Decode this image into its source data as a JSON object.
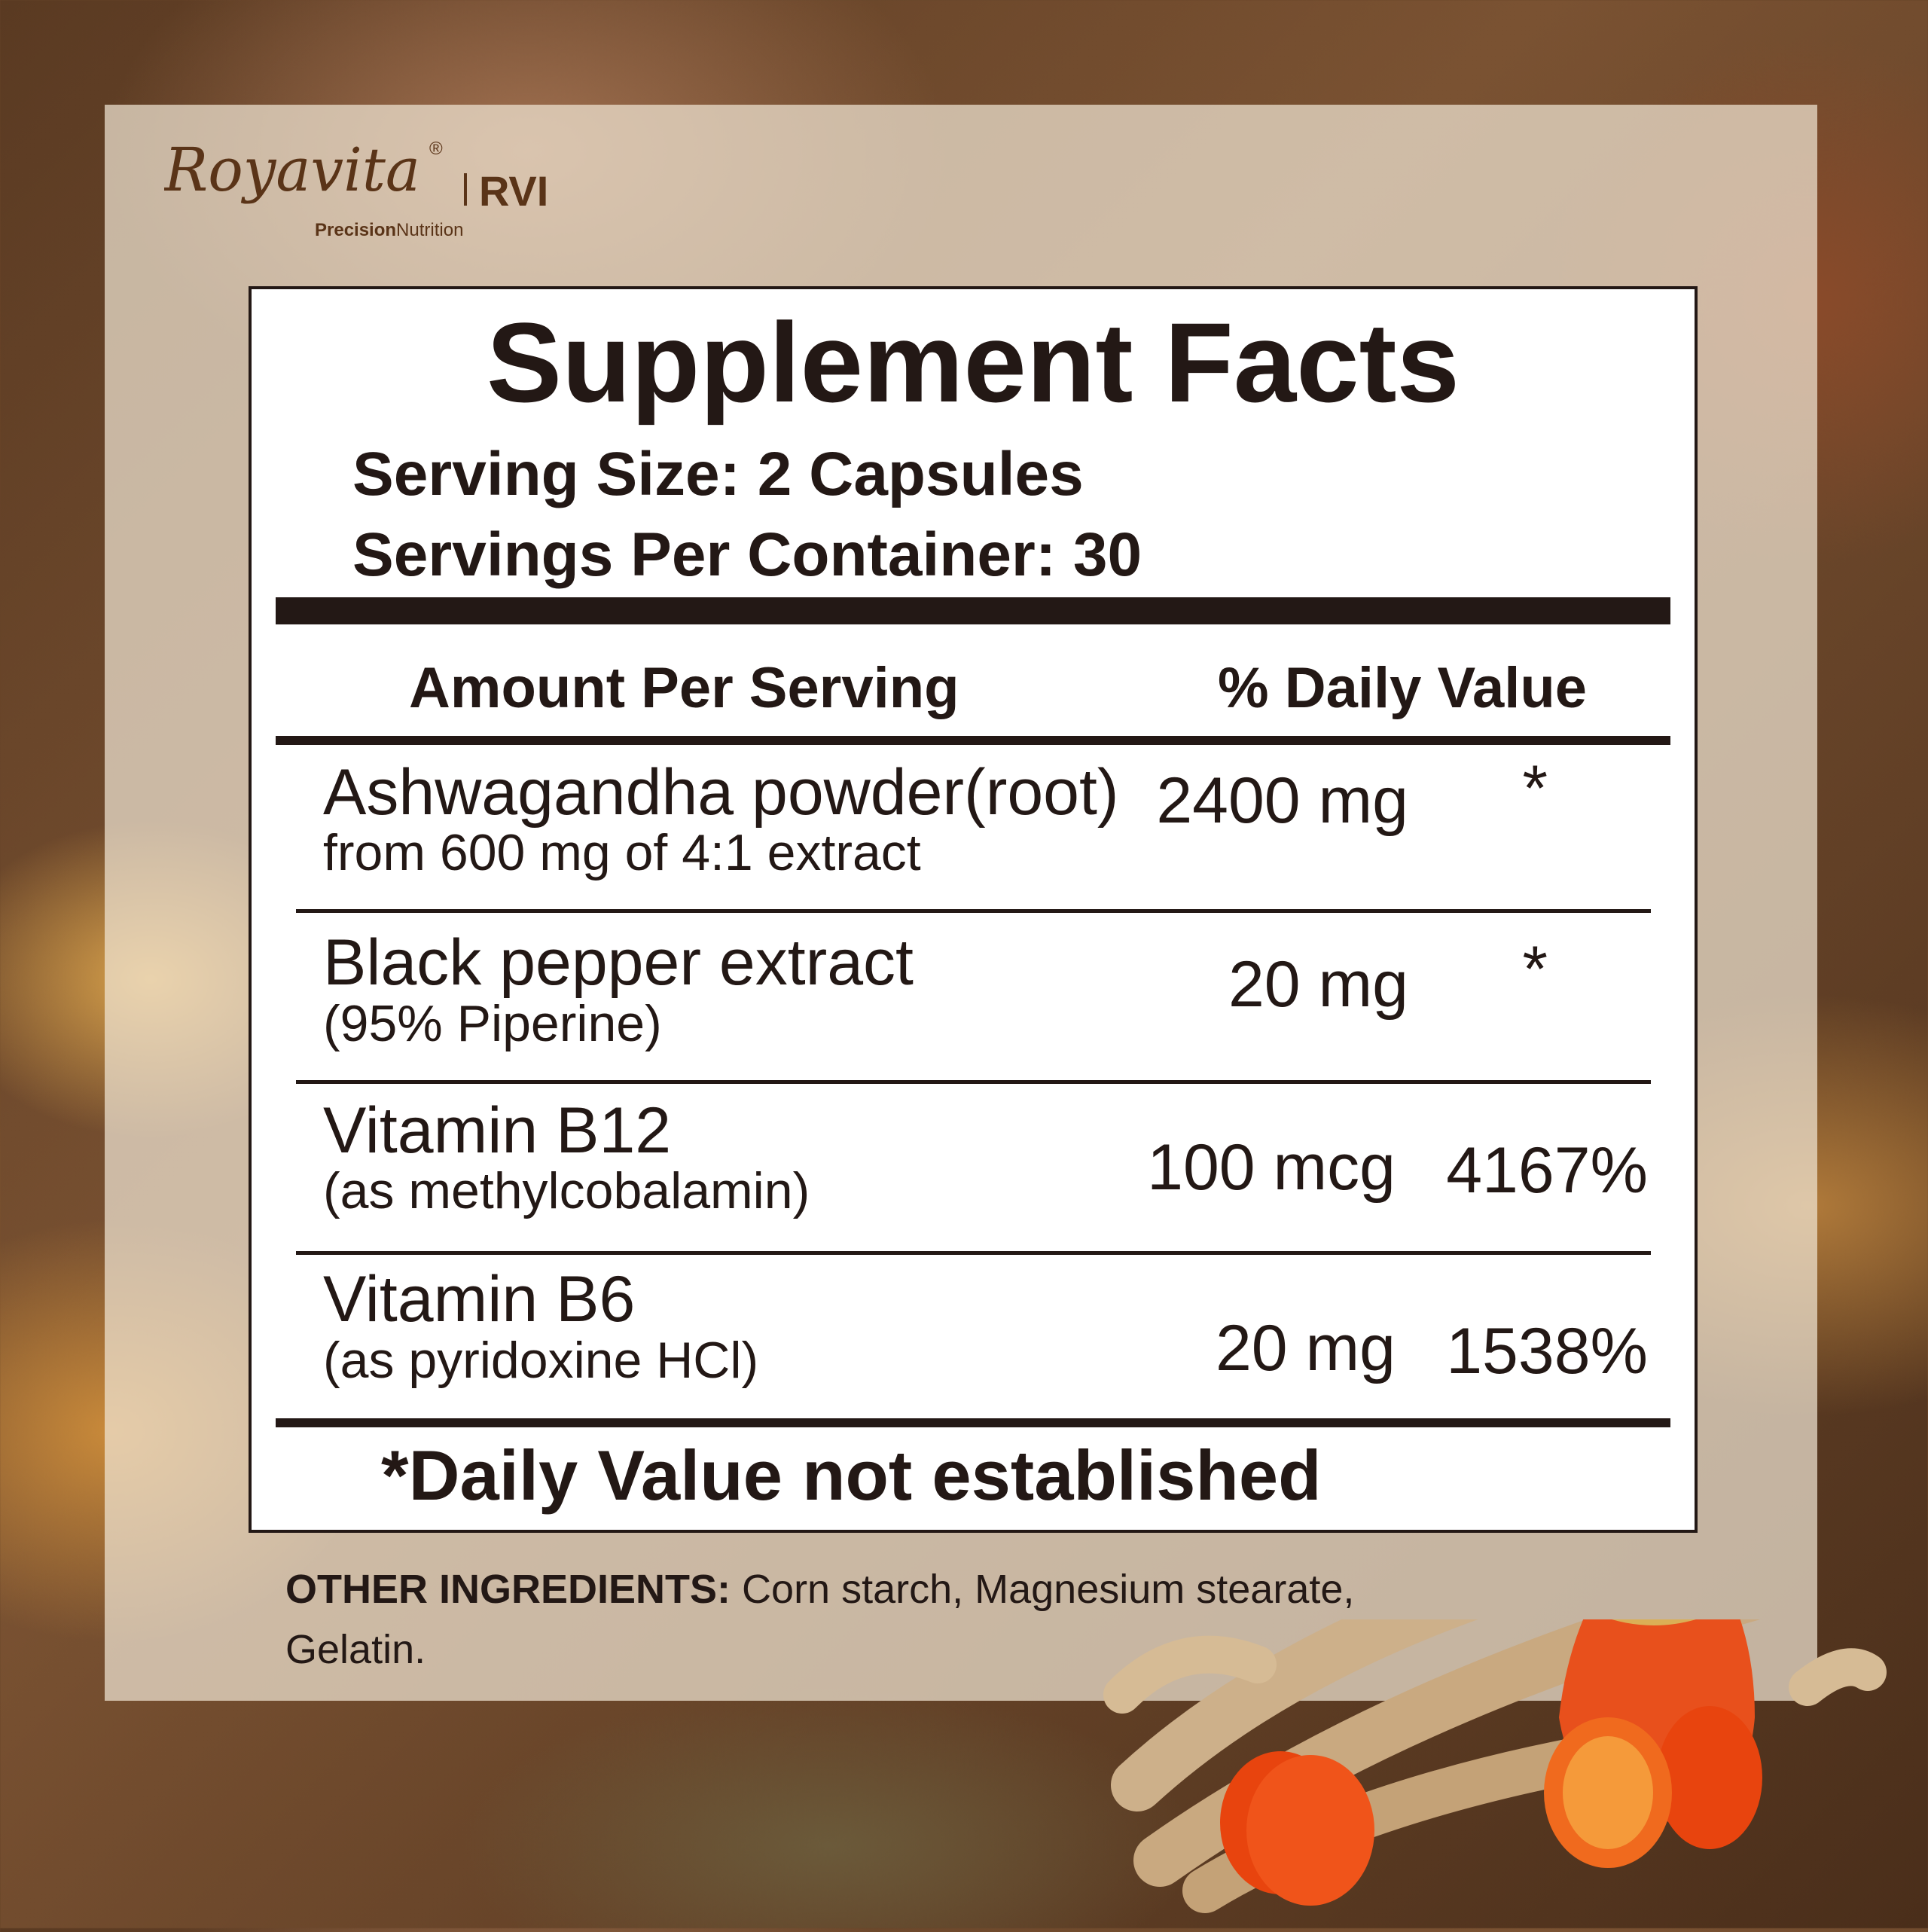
{
  "brand": {
    "logo_text": "Royavita",
    "registered": "®",
    "tagline_bold": "Precision",
    "tagline": "Nutrition",
    "partner": "RVI"
  },
  "label": {
    "title": "Supplement Facts",
    "serving_size": "Serving Size: 2 Capsules",
    "servings_per_container": "Servings Per Container: 30",
    "header_amount": "Amount Per Serving",
    "header_dv": "% Daily Value",
    "rows": [
      {
        "name": "Ashwagandha powder(root)",
        "detail": "from 600 mg of 4:1 extract",
        "amount": "2400 mg",
        "dv": "*"
      },
      {
        "name": "Black pepper extract",
        "detail": "(95% Piperine)",
        "amount": "20 mg",
        "dv": "*"
      },
      {
        "name": "Vitamin B12",
        "detail": "(as methylcobalamin)",
        "amount": "100 mcg",
        "dv": "4167%"
      },
      {
        "name": "Vitamin B6",
        "detail": "(as pyridoxine HCl)",
        "amount": "20 mg",
        "dv": "1538%"
      }
    ],
    "footnote": "*Daily Value not established"
  },
  "other_ingredients": {
    "label": "OTHER INGREDIENTS:",
    "text": " Corn starch, Magnesium stearate,  Gelatin."
  },
  "colors": {
    "text": "#231815",
    "brand_brown": "#5a3418",
    "panel": "#f0e4d2"
  }
}
